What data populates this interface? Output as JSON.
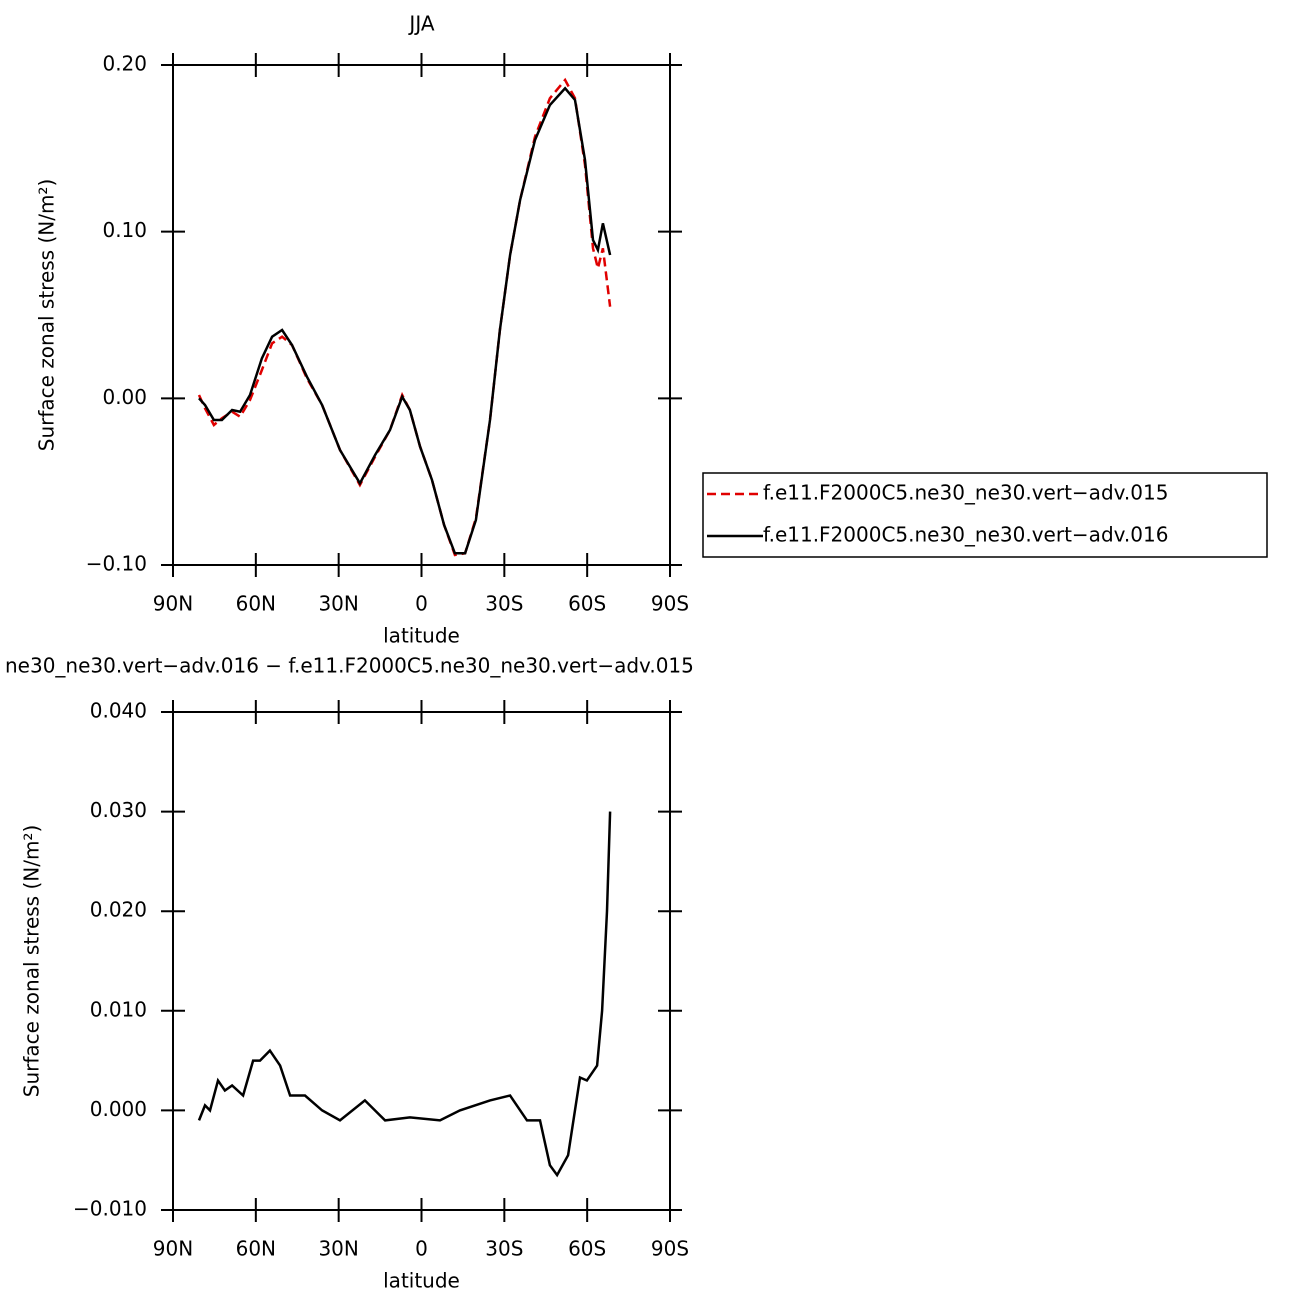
{
  "chart_data": [
    {
      "type": "line",
      "title": "JJA",
      "xlabel": "latitude",
      "ylabel": "Surface zonal stress (N/m²)",
      "x": [
        80.6,
        78.4,
        75.2,
        72.3,
        68.6,
        65.7,
        62.1,
        57.8,
        54.1,
        50.5,
        46.9,
        41.5,
        36.0,
        29.5,
        22.3,
        16.8,
        11.4,
        7.0,
        4.2,
        0.5,
        -3.8,
        -8.2,
        -12.1,
        -15.8,
        -19.7,
        -24.8,
        -28.4,
        -32.1,
        -35.7,
        -41.1,
        -46.5,
        -52.0,
        -55.6,
        -59.2,
        -62.1,
        -63.9,
        -65.7,
        -68.3
      ],
      "series": [
        {
          "name": "f.e11.F2000C5.ne30_ne30.vert−adv.015",
          "color": "#e00000",
          "style": "dashed",
          "values": [
            0.002,
            -0.006,
            -0.016,
            -0.012,
            -0.008,
            -0.011,
            -0.001,
            0.017,
            0.033,
            0.037,
            0.032,
            0.012,
            -0.004,
            -0.031,
            -0.052,
            -0.035,
            -0.019,
            0.002,
            -0.007,
            -0.029,
            -0.049,
            -0.076,
            -0.094,
            -0.093,
            -0.072,
            -0.013,
            0.041,
            0.086,
            0.119,
            0.157,
            0.18,
            0.191,
            0.18,
            0.14,
            0.09,
            0.078,
            0.09,
            0.055
          ]
        },
        {
          "name": "f.e11.F2000C5.ne30_ne30.vert−adv.016",
          "color": "#000000",
          "style": "solid",
          "values": [
            0.0,
            -0.004,
            -0.013,
            -0.013,
            -0.007,
            -0.008,
            0.002,
            0.024,
            0.037,
            0.041,
            0.032,
            0.013,
            -0.004,
            -0.031,
            -0.051,
            -0.034,
            -0.019,
            0.001,
            -0.007,
            -0.029,
            -0.049,
            -0.076,
            -0.093,
            -0.093,
            -0.073,
            -0.013,
            0.041,
            0.086,
            0.119,
            0.155,
            0.176,
            0.186,
            0.179,
            0.143,
            0.095,
            0.089,
            0.105,
            0.086
          ]
        }
      ],
      "xlim": [
        90,
        -90
      ],
      "xticks": [
        {
          "value": 90,
          "label": "90N"
        },
        {
          "value": 60,
          "label": "60N"
        },
        {
          "value": 30,
          "label": "30N"
        },
        0,
        {
          "value": -30,
          "label": "30S"
        },
        {
          "value": -60,
          "label": "60S"
        },
        {
          "value": -90,
          "label": "90S"
        }
      ],
      "ylim": [
        -0.1,
        0.2
      ],
      "yticks": [
        {
          "value": -0.1,
          "label": "−0.10"
        },
        {
          "value": 0,
          "label": "0.00"
        },
        {
          "value": 0.1,
          "label": "0.10"
        },
        {
          "value": 0.2,
          "label": "0.20"
        }
      ],
      "legend": "right"
    },
    {
      "type": "line",
      "title": "ne30_ne30.vert−adv.016 − f.e11.F2000C5.ne30_ne30.vert−adv.015",
      "xlabel": "latitude",
      "ylabel": "Surface zonal stress (N/m²)",
      "x": [
        80.6,
        78.4,
        76.6,
        73.7,
        71.2,
        68.6,
        64.6,
        61.0,
        58.5,
        54.9,
        51.2,
        47.6,
        42.2,
        36.0,
        29.5,
        20.5,
        13.2,
        4.2,
        -6.7,
        -13.9,
        -24.8,
        -32.1,
        -38.2,
        -42.9,
        -46.5,
        -49.1,
        -53.1,
        -57.4,
        -59.9,
        -63.6,
        -65.4,
        -67.2,
        -68.3
      ],
      "color": "#000000",
      "values": [
        -0.001,
        0.0005,
        0.0,
        0.003,
        0.002,
        0.0025,
        0.0015,
        0.005,
        0.005,
        0.006,
        0.0045,
        0.0015,
        0.0015,
        0.0,
        -0.001,
        0.001,
        -0.001,
        -0.0007,
        -0.001,
        0.0,
        0.001,
        0.0015,
        -0.001,
        -0.001,
        -0.0055,
        -0.0065,
        -0.0045,
        0.0033,
        0.003,
        0.0045,
        0.01,
        0.02,
        0.03
      ],
      "xlim": [
        90,
        -90
      ],
      "xticks": [
        {
          "value": 90,
          "label": "90N"
        },
        {
          "value": 60,
          "label": "60N"
        },
        {
          "value": 30,
          "label": "30N"
        },
        0,
        {
          "value": -30,
          "label": "30S"
        },
        {
          "value": -60,
          "label": "60S"
        },
        {
          "value": -90,
          "label": "90S"
        }
      ],
      "ylim": [
        -0.01,
        0.04
      ],
      "yticks": [
        {
          "value": -0.01,
          "label": "−0.010"
        },
        {
          "value": 0,
          "label": "0.000"
        },
        {
          "value": 0.01,
          "label": "0.010"
        },
        {
          "value": 0.02,
          "label": "0.020"
        },
        {
          "value": 0.03,
          "label": "0.030"
        },
        {
          "value": 0.04,
          "label": "0.040"
        }
      ]
    }
  ]
}
